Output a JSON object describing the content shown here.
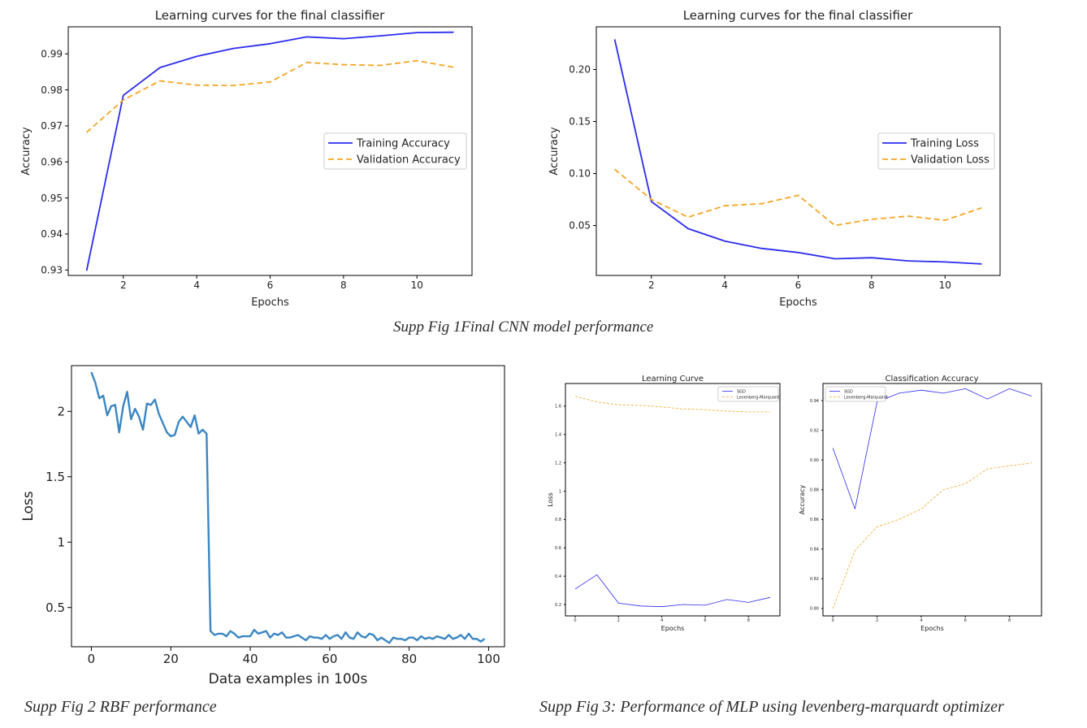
{
  "captions": {
    "fig1": "Supp Fig 1Final CNN model performance",
    "fig2": "Supp Fig 2 RBF performance",
    "fig3": "Supp Fig 3: Performance of MLP using  levenberg-marquardt optimizer"
  },
  "chart_data": [
    {
      "type": "line",
      "title": "Learning curves for the final classifier",
      "xlabel": "Epochs",
      "ylabel": "Accuracy",
      "xlim": [
        0.5,
        11.5
      ],
      "ylim": [
        0.9285,
        0.9975
      ],
      "xticks": [
        2,
        4,
        6,
        8,
        10
      ],
      "yticks": [
        0.93,
        0.94,
        0.95,
        0.96,
        0.97,
        0.98,
        0.99
      ],
      "grid": false,
      "legend_position": "center-right",
      "x": [
        1,
        2,
        3,
        4,
        5,
        6,
        7,
        8,
        9,
        10,
        11
      ],
      "series": [
        {
          "name": "Training Accuracy",
          "color": "#2b2bf0",
          "dash": "solid",
          "values": [
            0.9298,
            0.9785,
            0.9862,
            0.9893,
            0.9915,
            0.9928,
            0.9947,
            0.9942,
            0.995,
            0.9959,
            0.996
          ]
        },
        {
          "name": "Validation Accuracy",
          "color": "#f5a623",
          "dash": "dashed",
          "values": [
            0.9682,
            0.9772,
            0.9825,
            0.9813,
            0.9812,
            0.9822,
            0.9876,
            0.987,
            0.9868,
            0.9881,
            0.9863
          ]
        }
      ]
    },
    {
      "type": "line",
      "title": "Learning curves for the final classifier",
      "xlabel": "Epochs",
      "ylabel": "Accuracy",
      "xlim": [
        0.5,
        11.5
      ],
      "ylim": [
        0.002,
        0.241
      ],
      "xticks": [
        2,
        4,
        6,
        8,
        10
      ],
      "yticks": [
        0.05,
        0.1,
        0.15,
        0.2
      ],
      "ytick_labels": [
        "0.05",
        "0.10",
        "0.15",
        "0.20"
      ],
      "grid": false,
      "legend_position": "center-right",
      "x": [
        1,
        2,
        3,
        4,
        5,
        6,
        7,
        8,
        9,
        10,
        11
      ],
      "series": [
        {
          "name": "Training Loss",
          "color": "#2b2bf0",
          "dash": "solid",
          "values": [
            0.229,
            0.073,
            0.047,
            0.035,
            0.028,
            0.024,
            0.018,
            0.019,
            0.016,
            0.015,
            0.013
          ]
        },
        {
          "name": "Validation Loss",
          "color": "#f5a623",
          "dash": "dashed",
          "values": [
            0.104,
            0.075,
            0.058,
            0.069,
            0.071,
            0.079,
            0.05,
            0.056,
            0.059,
            0.055,
            0.067
          ]
        }
      ]
    },
    {
      "type": "line",
      "title": "",
      "xlabel": "Data examples in 100s",
      "ylabel": "Loss",
      "xlim": [
        -5,
        104
      ],
      "ylim": [
        0.2,
        2.35
      ],
      "xticks": [
        0,
        20,
        40,
        60,
        80,
        100
      ],
      "yticks": [
        0.5,
        1.0,
        1.5,
        2.0
      ],
      "grid": false,
      "series": [
        {
          "name": "",
          "color": "#3a86c2",
          "dash": "solid",
          "x": [
            0,
            1,
            2,
            3,
            4,
            5,
            6,
            7,
            8,
            9,
            10,
            11,
            12,
            13,
            14,
            15,
            16,
            17,
            18,
            19,
            20,
            21,
            22,
            23,
            24,
            25,
            26,
            27,
            28,
            29,
            30,
            31,
            32,
            33,
            34,
            35,
            36,
            37,
            38,
            39,
            40,
            41,
            42,
            43,
            44,
            45,
            46,
            47,
            48,
            49,
            50,
            51,
            52,
            53,
            54,
            55,
            56,
            57,
            58,
            59,
            60,
            61,
            62,
            63,
            64,
            65,
            66,
            67,
            68,
            69,
            70,
            71,
            72,
            73,
            74,
            75,
            76,
            77,
            78,
            79,
            80,
            81,
            82,
            83,
            84,
            85,
            86,
            87,
            88,
            89,
            90,
            91,
            92,
            93,
            94,
            95,
            96,
            97,
            98,
            99
          ],
          "values": [
            2.3,
            2.22,
            2.1,
            2.12,
            1.97,
            2.04,
            2.05,
            1.84,
            2.04,
            2.15,
            1.94,
            2.02,
            1.96,
            1.86,
            2.06,
            2.05,
            2.09,
            1.98,
            1.91,
            1.84,
            1.81,
            1.82,
            1.92,
            1.96,
            1.92,
            1.88,
            1.97,
            1.83,
            1.86,
            1.83,
            0.32,
            0.29,
            0.3,
            0.3,
            0.28,
            0.32,
            0.3,
            0.27,
            0.28,
            0.28,
            0.28,
            0.33,
            0.3,
            0.31,
            0.32,
            0.27,
            0.3,
            0.29,
            0.31,
            0.27,
            0.27,
            0.28,
            0.29,
            0.27,
            0.25,
            0.28,
            0.27,
            0.27,
            0.26,
            0.29,
            0.26,
            0.28,
            0.29,
            0.26,
            0.31,
            0.27,
            0.26,
            0.31,
            0.28,
            0.27,
            0.3,
            0.29,
            0.25,
            0.27,
            0.25,
            0.23,
            0.27,
            0.26,
            0.26,
            0.25,
            0.27,
            0.27,
            0.25,
            0.28,
            0.26,
            0.27,
            0.26,
            0.28,
            0.27,
            0.26,
            0.29,
            0.26,
            0.27,
            0.29,
            0.26,
            0.3,
            0.26,
            0.26,
            0.24,
            0.26
          ]
        }
      ]
    },
    {
      "type": "line",
      "title": "Learning Curve",
      "xlabel": "Epochs",
      "ylabel": "Loss",
      "xlim": [
        -0.45,
        9.45
      ],
      "ylim": [
        0.12,
        1.76
      ],
      "xticks": [
        0,
        2,
        4,
        6,
        8
      ],
      "yticks": [
        0.2,
        0.4,
        0.6,
        0.8,
        1.0,
        1.2,
        1.4,
        1.6
      ],
      "grid": false,
      "legend_position": "top-right",
      "x": [
        0,
        1,
        2,
        3,
        4,
        5,
        6,
        7,
        8,
        9
      ],
      "series": [
        {
          "name": "SGD",
          "color": "#2b2bf0",
          "dash": "solid",
          "values": [
            0.31,
            0.41,
            0.21,
            0.19,
            0.185,
            0.2,
            0.195,
            0.235,
            0.215,
            0.25
          ]
        },
        {
          "name": "Levenberg-Marquardt",
          "color": "#f5a623",
          "dash": "dashed",
          "values": [
            1.67,
            1.63,
            1.61,
            1.605,
            1.595,
            1.58,
            1.575,
            1.565,
            1.56,
            1.56
          ]
        }
      ]
    },
    {
      "type": "line",
      "title": "Classification Accuracy",
      "xlabel": "Epochs",
      "ylabel": "Accuracy",
      "xlim": [
        -0.45,
        9.45
      ],
      "ylim": [
        0.795,
        0.9515
      ],
      "xticks": [
        0,
        2,
        4,
        6,
        8
      ],
      "yticks": [
        0.8,
        0.82,
        0.84,
        0.86,
        0.88,
        0.9,
        0.92,
        0.94
      ],
      "ytick_labels": [
        "0.80",
        "0.82",
        "0.84",
        "0.86",
        "0.88",
        "0.90",
        "0.92",
        "0.94"
      ],
      "grid": false,
      "legend_position": "top-left",
      "x": [
        0,
        1,
        2,
        3,
        4,
        5,
        6,
        7,
        8,
        9
      ],
      "series": [
        {
          "name": "SGD",
          "color": "#2b2bf0",
          "dash": "solid",
          "values": [
            0.908,
            0.867,
            0.939,
            0.945,
            0.947,
            0.945,
            0.948,
            0.941,
            0.948,
            0.943
          ]
        },
        {
          "name": "Levenberg-Marquardt",
          "color": "#f5a623",
          "dash": "dashed",
          "values": [
            0.8,
            0.839,
            0.855,
            0.86,
            0.867,
            0.88,
            0.884,
            0.894,
            0.896,
            0.898
          ]
        }
      ]
    }
  ]
}
